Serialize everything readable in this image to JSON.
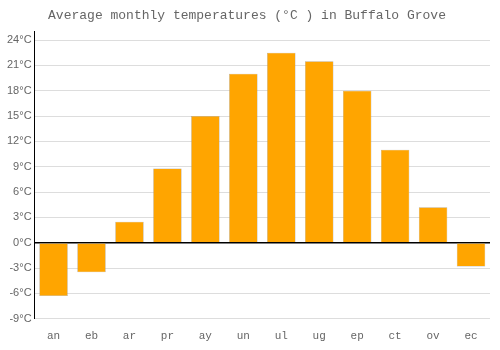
{
  "chart_data": {
    "type": "bar",
    "title": "Average monthly temperatures (°C ) in Buffalo Grove",
    "categories": [
      "an",
      "eb",
      "ar",
      "pr",
      "ay",
      "un",
      "ul",
      "ug",
      "ep",
      "ct",
      "ov",
      "ec"
    ],
    "values": [
      -6.3,
      -3.5,
      2.5,
      8.8,
      15.0,
      20.0,
      22.5,
      21.5,
      18.0,
      11.0,
      4.2,
      -2.8
    ],
    "color": "#FFA500",
    "ylim": [
      -9,
      25
    ],
    "yticks": [
      {
        "value": -9,
        "label": "-9°C"
      },
      {
        "value": -6,
        "label": "-6°C"
      },
      {
        "value": -3,
        "label": "-3°C"
      },
      {
        "value": 0,
        "label": "0°C"
      },
      {
        "value": 3,
        "label": "3°C"
      },
      {
        "value": 6,
        "label": "6°C"
      },
      {
        "value": 9,
        "label": "9°C"
      },
      {
        "value": 12,
        "label": "12°C"
      },
      {
        "value": 15,
        "label": "15°C"
      },
      {
        "value": 18,
        "label": "18°C"
      },
      {
        "value": 21,
        "label": "21°C"
      },
      {
        "value": 24,
        "label": "24°C"
      }
    ],
    "grid": true
  }
}
